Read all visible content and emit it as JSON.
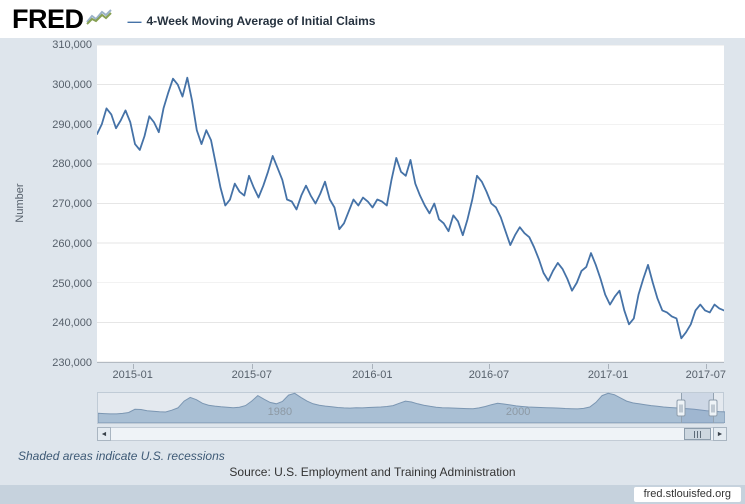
{
  "header": {
    "logo_text": "FRED",
    "legend_dash": "—",
    "legend_label": "4-Week Moving Average of Initial Claims"
  },
  "colors": {
    "page_bg": "#dee5ec",
    "plot_bg": "#ffffff",
    "line": "#4572a7",
    "grid": "#e6e6e6",
    "axis_text": "#555f6a",
    "nav_fill": "#a9bfd4",
    "nav_line": "#7b96b2",
    "selection_mask": "rgba(122,150,198,0.22)",
    "bottom_bar_bg": "#c6d2dd"
  },
  "chart_data": [
    {
      "type": "line",
      "title": "4-Week Moving Average of Initial Claims",
      "xlabel": "",
      "ylabel": "Number",
      "ylim": [
        230000,
        310000
      ],
      "x_range": [
        "2014-11",
        "2017-08"
      ],
      "grid": "horizontal",
      "y_ticks": [
        {
          "value": 310000,
          "label": "310,000"
        },
        {
          "value": 300000,
          "label": "300,000"
        },
        {
          "value": 290000,
          "label": "290,000"
        },
        {
          "value": 280000,
          "label": "280,000"
        },
        {
          "value": 270000,
          "label": "270,000"
        },
        {
          "value": 260000,
          "label": "260,000"
        },
        {
          "value": 250000,
          "label": "250,000"
        },
        {
          "value": 240000,
          "label": "240,000"
        },
        {
          "value": 230000,
          "label": "230,000"
        }
      ],
      "x_ticks": [
        {
          "label": "2015-01",
          "pos": 0.057
        },
        {
          "label": "2015-07",
          "pos": 0.247
        },
        {
          "label": "2016-01",
          "pos": 0.439
        },
        {
          "label": "2016-07",
          "pos": 0.625
        },
        {
          "label": "2017-01",
          "pos": 0.815
        },
        {
          "label": "2017-07",
          "pos": 0.971
        }
      ],
      "series": [
        {
          "name": "4-Week Moving Average of Initial Claims",
          "values": [
            287500,
            290000,
            294000,
            292500,
            289000,
            291000,
            293500,
            290500,
            285000,
            283500,
            287000,
            292000,
            290500,
            288000,
            294000,
            298000,
            301500,
            300000,
            297000,
            301750,
            296000,
            288500,
            285000,
            288500,
            286000,
            280000,
            274000,
            269500,
            271000,
            275000,
            273000,
            272000,
            277000,
            274000,
            271500,
            274500,
            278000,
            282000,
            279000,
            276000,
            271000,
            270500,
            268500,
            272000,
            274500,
            272000,
            270000,
            272500,
            275500,
            271000,
            269000,
            263500,
            265000,
            268000,
            271000,
            269500,
            271500,
            270500,
            269000,
            271000,
            270500,
            269500,
            276000,
            281500,
            278000,
            277000,
            281000,
            275000,
            272000,
            269500,
            267500,
            270000,
            266000,
            265000,
            263000,
            267000,
            265500,
            262000,
            266000,
            271000,
            277000,
            275500,
            273000,
            270000,
            269000,
            266500,
            263000,
            259500,
            262000,
            264000,
            262500,
            261500,
            259000,
            256000,
            252500,
            250500,
            253000,
            255000,
            253500,
            251000,
            248000,
            250000,
            253000,
            254000,
            257500,
            254500,
            251000,
            247000,
            244500,
            246500,
            248000,
            243000,
            239500,
            241000,
            247000,
            251000,
            254500,
            250000,
            246000,
            243000,
            242500,
            241500,
            241000,
            236000,
            237500,
            239500,
            243000,
            244500,
            243000,
            242500,
            244500,
            243500,
            243000
          ]
        }
      ]
    },
    {
      "type": "area",
      "title": "navigator-full-history",
      "x_start": 1967,
      "x_end": 2017,
      "ylim": [
        0,
        700000
      ],
      "year_labels": [
        {
          "text": "1980",
          "pos": 0.29
        },
        {
          "text": "2000",
          "pos": 0.67
        }
      ],
      "series": [
        {
          "name": "Initial Claims full history (navigator)",
          "values": [
            215000,
            205000,
            198000,
            200000,
            210000,
            230000,
            300000,
            295000,
            270000,
            255000,
            245000,
            240000,
            280000,
            330000,
            480000,
            560000,
            510000,
            430000,
            390000,
            370000,
            355000,
            345000,
            335000,
            345000,
            380000,
            480000,
            600000,
            520000,
            450000,
            420000,
            470000,
            610000,
            650000,
            560000,
            480000,
            420000,
            390000,
            370000,
            355000,
            340000,
            330000,
            325000,
            335000,
            330000,
            340000,
            345000,
            350000,
            360000,
            380000,
            430000,
            480000,
            460000,
            420000,
            390000,
            365000,
            345000,
            335000,
            330000,
            325000,
            320000,
            315000,
            310000,
            330000,
            360000,
            400000,
            430000,
            415000,
            395000,
            375000,
            360000,
            350000,
            345000,
            340000,
            335000,
            330000,
            325000,
            318000,
            312000,
            308000,
            320000,
            350000,
            450000,
            600000,
            650000,
            620000,
            550000,
            480000,
            440000,
            420000,
            400000,
            380000,
            365000,
            350000,
            340000,
            330000,
            320000,
            310000,
            300000,
            285000,
            270000,
            260000,
            250000,
            243000
          ]
        }
      ]
    }
  ],
  "selection": {
    "from": 0.93,
    "to": 0.981
  },
  "scrollbar": {
    "left_arrow": "◄",
    "right_arrow": "►",
    "thumb": {
      "from": 0.952,
      "to": 0.997
    }
  },
  "footer": {
    "recessions_note": "Shaded areas indicate U.S. recessions",
    "source": "Source: U.S. Employment and Training Administration",
    "site_url": "fred.stlouisfed.org"
  }
}
